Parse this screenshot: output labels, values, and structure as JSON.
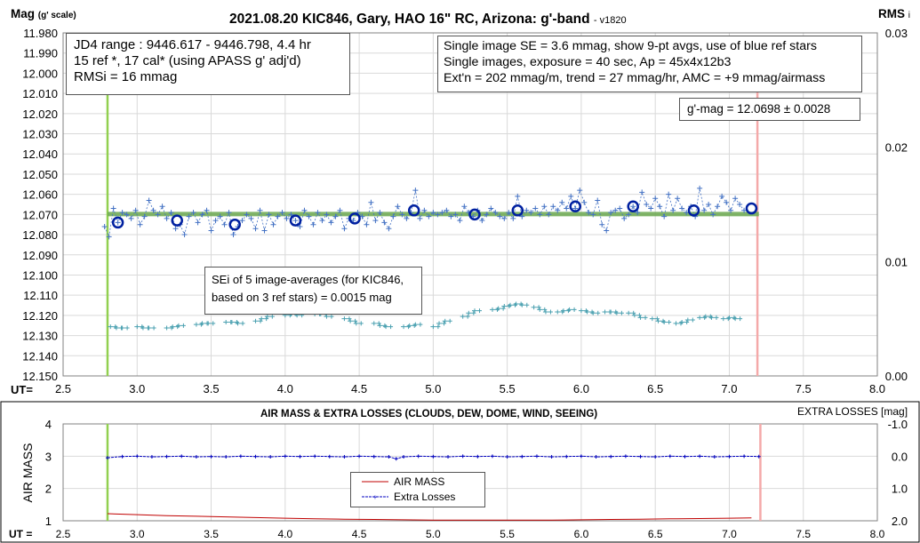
{
  "chart_data": [
    {
      "type": "scatter",
      "title": "2021.08.20 KIC846, Gary, HAO 16\" RC, Arizona: g'-band",
      "version": "- v1820",
      "ylabel_main": "Mag",
      "ylabel_sub": "(g' scale)",
      "y2label_main": "RMS",
      "y2label_sub": "i",
      "xlabel": "UT=",
      "xlim": [
        2.5,
        8.0
      ],
      "ylim": [
        11.98,
        12.15
      ],
      "y_reversed": true,
      "y2lim": [
        0.0,
        0.03
      ],
      "x_ticks": [
        "2.5",
        "3.0",
        "3.5",
        "4.0",
        "4.5",
        "5.0",
        "5.5",
        "6.0",
        "6.5",
        "7.0",
        "7.5",
        "8.0"
      ],
      "y_ticks": [
        "11.980",
        "11.990",
        "12.000",
        "12.010",
        "12.020",
        "12.030",
        "12.040",
        "12.050",
        "12.060",
        "12.070",
        "12.080",
        "12.090",
        "12.100",
        "12.110",
        "12.120",
        "12.130",
        "12.140",
        "12.150"
      ],
      "y2_ticks": [
        "0.00",
        "0.01",
        "0.02",
        "0.03"
      ],
      "grid": true,
      "vlines": [
        {
          "x": 2.8,
          "color": "#92d050"
        },
        {
          "x": 7.19,
          "color": "#f4a9a9"
        }
      ],
      "mean_mag": 12.0698,
      "series": [
        {
          "kind": "single_images",
          "x": [
            2.78,
            2.81,
            2.84,
            2.87,
            2.9,
            2.93,
            2.96,
            2.99,
            3.02,
            3.05,
            3.08,
            3.11,
            3.14,
            3.17,
            3.2,
            3.23,
            3.26,
            3.29,
            3.32,
            3.35,
            3.38,
            3.41,
            3.44,
            3.47,
            3.5,
            3.53,
            3.56,
            3.59,
            3.62,
            3.65,
            3.68,
            3.71,
            3.74,
            3.77,
            3.8,
            3.83,
            3.86,
            3.89,
            3.92,
            3.95,
            3.98,
            4.01,
            4.04,
            4.07,
            4.1,
            4.13,
            4.16,
            4.19,
            4.22,
            4.25,
            4.28,
            4.31,
            4.34,
            4.37,
            4.4,
            4.43,
            4.46,
            4.49,
            4.52,
            4.55,
            4.58,
            4.61,
            4.64,
            4.67,
            4.7,
            4.73,
            4.76,
            4.79,
            4.82,
            4.85,
            4.88,
            4.91,
            4.94,
            4.97,
            5.0,
            5.03,
            5.06,
            5.09,
            5.12,
            5.15,
            5.18,
            5.21,
            5.24,
            5.27,
            5.3,
            5.33,
            5.36,
            5.39,
            5.42,
            5.45,
            5.48,
            5.51,
            5.54,
            5.57,
            5.6,
            5.63,
            5.66,
            5.69,
            5.72,
            5.75,
            5.78,
            5.81,
            5.84,
            5.87,
            5.9,
            5.93,
            5.96,
            5.99,
            6.02,
            6.05,
            6.08,
            6.11,
            6.14,
            6.17,
            6.2,
            6.23,
            6.26,
            6.29,
            6.32,
            6.35,
            6.38,
            6.41,
            6.44,
            6.47,
            6.5,
            6.53,
            6.56,
            6.59,
            6.62,
            6.65,
            6.68,
            6.71,
            6.74,
            6.77,
            6.8,
            6.83,
            6.86,
            6.89,
            6.92,
            6.95,
            6.98,
            7.01,
            7.04,
            7.07,
            7.1
          ],
          "y": [
            12.076,
            12.081,
            12.067,
            12.074,
            12.069,
            12.07,
            12.072,
            12.068,
            12.075,
            12.071,
            12.063,
            12.068,
            12.07,
            12.066,
            12.072,
            12.069,
            12.077,
            12.075,
            12.08,
            12.071,
            12.069,
            12.074,
            12.07,
            12.068,
            12.078,
            12.073,
            12.071,
            12.075,
            12.069,
            12.08,
            12.076,
            12.073,
            12.07,
            12.072,
            12.077,
            12.068,
            12.078,
            12.07,
            12.075,
            12.071,
            12.069,
            12.072,
            12.07,
            12.073,
            12.076,
            12.068,
            12.071,
            12.075,
            12.069,
            12.073,
            12.07,
            12.074,
            12.071,
            12.068,
            12.077,
            12.072,
            12.073,
            12.069,
            12.071,
            12.075,
            12.064,
            12.073,
            12.069,
            12.074,
            12.077,
            12.071,
            12.066,
            12.07,
            12.072,
            12.069,
            12.058,
            12.072,
            12.068,
            12.071,
            12.069,
            12.07,
            12.069,
            12.068,
            12.071,
            12.07,
            12.073,
            12.066,
            12.069,
            12.071,
            12.068,
            12.073,
            12.07,
            12.067,
            12.069,
            12.071,
            12.072,
            12.069,
            12.072,
            12.061,
            12.071,
            12.068,
            12.069,
            12.067,
            12.07,
            12.066,
            12.07,
            12.066,
            12.068,
            12.064,
            12.067,
            12.061,
            12.067,
            12.058,
            12.064,
            12.069,
            12.07,
            12.063,
            12.075,
            12.078,
            12.069,
            12.068,
            12.067,
            12.072,
            12.07,
            12.066,
            12.069,
            12.059,
            12.065,
            12.067,
            12.062,
            12.066,
            12.071,
            12.06,
            12.068,
            12.062,
            12.067,
            12.069,
            12.066,
            12.071,
            12.057,
            12.068,
            12.065,
            12.07,
            12.066,
            12.061,
            12.064,
            12.068,
            12.062,
            12.065,
            12.068
          ]
        },
        {
          "kind": "nine_point_averages",
          "x": [
            2.87,
            3.27,
            3.66,
            4.07,
            4.47,
            4.87,
            5.28,
            5.57,
            5.96,
            6.35,
            6.76,
            7.15
          ],
          "y": [
            12.074,
            12.073,
            12.075,
            12.073,
            12.072,
            12.068,
            12.07,
            12.068,
            12.066,
            12.066,
            12.068,
            12.067
          ]
        },
        {
          "kind": "rms_i",
          "x": [
            2.82,
            2.86,
            2.9,
            3.0,
            3.04,
            3.08,
            3.2,
            3.24,
            3.28,
            3.4,
            3.44,
            3.48,
            3.6,
            3.64,
            3.68,
            3.8,
            3.84,
            3.88,
            4.0,
            4.04,
            4.08,
            4.2,
            4.24,
            4.28,
            4.4,
            4.44,
            4.48,
            4.6,
            4.64,
            4.68,
            4.8,
            4.84,
            4.88,
            5.0,
            5.04,
            5.08,
            5.2,
            5.24,
            5.28,
            5.4,
            5.44,
            5.48,
            5.52,
            5.56,
            5.6,
            5.68,
            5.72,
            5.76,
            5.84,
            5.88,
            5.92,
            6.0,
            6.04,
            6.08,
            6.16,
            6.2,
            6.24,
            6.32,
            6.36,
            6.4,
            6.48,
            6.52,
            6.56,
            6.64,
            6.68,
            6.72,
            6.8,
            6.84,
            6.88,
            6.96,
            7.0,
            7.04
          ],
          "y": [
            0.0043,
            0.0042,
            0.0042,
            0.0043,
            0.0042,
            0.0042,
            0.0042,
            0.0043,
            0.0044,
            0.0045,
            0.0046,
            0.0046,
            0.0047,
            0.0047,
            0.0046,
            0.0048,
            0.005,
            0.0052,
            0.0053,
            0.0054,
            0.0053,
            0.0054,
            0.0054,
            0.0052,
            0.005,
            0.0048,
            0.0046,
            0.0046,
            0.0044,
            0.0043,
            0.0043,
            0.0044,
            0.0045,
            0.0043,
            0.0046,
            0.0048,
            0.0052,
            0.0055,
            0.0057,
            0.0058,
            0.0059,
            0.0061,
            0.0062,
            0.0063,
            0.0062,
            0.006,
            0.0058,
            0.0056,
            0.0056,
            0.0057,
            0.0058,
            0.0057,
            0.0056,
            0.0055,
            0.0056,
            0.0056,
            0.0055,
            0.0055,
            0.0053,
            0.0051,
            0.005,
            0.0048,
            0.0047,
            0.0046,
            0.0047,
            0.0049,
            0.0051,
            0.0052,
            0.0051,
            0.005,
            0.0051,
            0.005
          ]
        }
      ]
    },
    {
      "type": "line",
      "title": "AIR MASS & EXTRA LOSSES (CLOUDS, DEW, DOME, WIND, SEEING)",
      "ylabel": "AIR MASS",
      "y2label": "EXTRA LOSSES [mag]",
      "xlabel": "UT =",
      "xlim": [
        2.5,
        8.0
      ],
      "ylim": [
        1,
        4
      ],
      "y2lim": [
        -1.0,
        2.0
      ],
      "y2_reversed": true,
      "x_ticks": [
        "2.5",
        "3.0",
        "3.5",
        "4.0",
        "4.5",
        "5.0",
        "5.5",
        "6.0",
        "6.5",
        "7.0",
        "7.5",
        "8.0"
      ],
      "y_ticks": [
        "1",
        "2",
        "3",
        "4"
      ],
      "y2_ticks": [
        "-1.0",
        "0.0",
        "1.0",
        "2.0"
      ],
      "vlines": [
        {
          "x": 2.8,
          "color": "#92d050"
        },
        {
          "x": 7.21,
          "color": "#f4a9a9"
        }
      ],
      "legend": [
        "AIR MASS",
        "Extra Losses"
      ],
      "series": [
        {
          "name": "AIR MASS",
          "color": "#c00000",
          "x": [
            2.8,
            3.0,
            3.2,
            3.4,
            3.6,
            3.8,
            4.0,
            4.2,
            4.4,
            4.6,
            4.8,
            5.0,
            5.2,
            5.4,
            5.6,
            5.8,
            6.0,
            6.2,
            6.4,
            6.6,
            6.8,
            7.0,
            7.15
          ],
          "y": [
            1.22,
            1.19,
            1.16,
            1.14,
            1.12,
            1.1,
            1.08,
            1.06,
            1.05,
            1.04,
            1.03,
            1.02,
            1.02,
            1.02,
            1.02,
            1.02,
            1.03,
            1.04,
            1.05,
            1.06,
            1.07,
            1.08,
            1.09
          ]
        },
        {
          "name": "Extra Losses",
          "color": "#0000c0",
          "x": [
            2.8,
            2.9,
            3.0,
            3.1,
            3.2,
            3.3,
            3.4,
            3.5,
            3.6,
            3.7,
            3.8,
            3.9,
            4.0,
            4.1,
            4.2,
            4.3,
            4.4,
            4.5,
            4.6,
            4.7,
            4.75,
            4.8,
            4.9,
            5.0,
            5.1,
            5.2,
            5.3,
            5.4,
            5.5,
            5.6,
            5.7,
            5.8,
            5.9,
            6.0,
            6.1,
            6.2,
            6.3,
            6.4,
            6.5,
            6.6,
            6.7,
            6.8,
            6.9,
            7.0,
            7.1,
            7.2
          ],
          "y": [
            0.05,
            0.01,
            0.0,
            0.02,
            0.01,
            0.0,
            0.02,
            0.01,
            0.02,
            0.0,
            0.01,
            0.02,
            0.0,
            0.01,
            0.0,
            0.01,
            0.02,
            0.0,
            0.01,
            0.02,
            0.08,
            0.02,
            0.0,
            0.01,
            0.02,
            0.0,
            0.01,
            0.0,
            0.02,
            0.01,
            0.0,
            0.02,
            0.01,
            0.0,
            0.02,
            0.01,
            0.0,
            0.01,
            0.02,
            0.0,
            0.01,
            0.0,
            0.02,
            0.01,
            0.0,
            0.01
          ]
        }
      ]
    }
  ],
  "annotations": {
    "jd_box": [
      "JD4 range : 9446.617 - 9446.798,  4.4  hr",
      "15 ref *, 17 cal* (using APASS g' adj'd)",
      "RMSi = 16 mmag"
    ],
    "se_box": [
      "Single image SE = 3.6 mmag, show  9-pt avgs, use of blue ref stars",
      "Single images, exposure = 40 sec, Ap = 45x4x12b3",
      "Ext'n = 202 mmag/m, trend = 27 mmag/hr, AMC = +9 mmag/airmass"
    ],
    "gmag_box": "g'-mag = 12.0698 ± 0.0028",
    "sei_box": [
      "SEi of 5 image-averages (for KIC846,",
      "based on 3 ref stars) = 0.0015 mag"
    ]
  },
  "colors": {
    "single": "#4472c4",
    "avg": "#0020a0",
    "rms": "#4aa0b0",
    "mean_line": "#70ad47",
    "grid": "#d9d9d9"
  }
}
